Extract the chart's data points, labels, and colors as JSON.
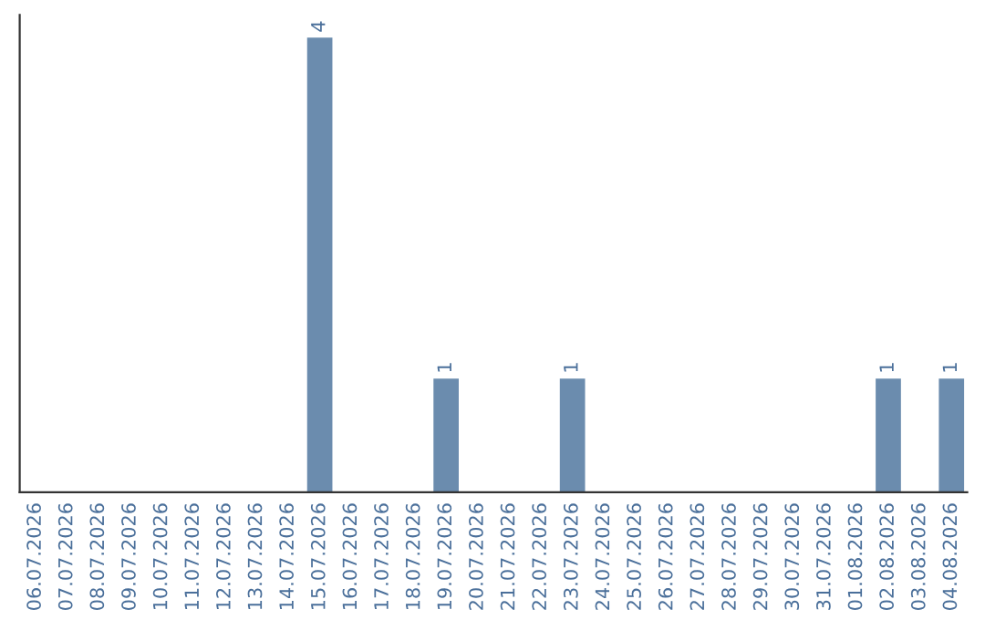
{
  "chart_data": {
    "type": "bar",
    "categories": [
      "06.07.2026",
      "07.07.2026",
      "08.07.2026",
      "09.07.2026",
      "10.07.2026",
      "11.07.2026",
      "12.07.2026",
      "13.07.2026",
      "14.07.2026",
      "15.07.2026",
      "16.07.2026",
      "17.07.2026",
      "18.07.2026",
      "19.07.2026",
      "20.07.2026",
      "21.07.2026",
      "22.07.2026",
      "23.07.2026",
      "24.07.2026",
      "25.07.2026",
      "26.07.2026",
      "27.07.2026",
      "28.07.2026",
      "29.07.2026",
      "30.07.2026",
      "31.07.2026",
      "01.08.2026",
      "02.08.2026",
      "03.08.2026",
      "04.08.2026"
    ],
    "values": [
      null,
      null,
      null,
      null,
      null,
      null,
      null,
      null,
      null,
      4,
      null,
      null,
      null,
      1,
      null,
      null,
      null,
      1,
      null,
      null,
      null,
      null,
      null,
      null,
      null,
      null,
      null,
      1,
      null,
      1
    ],
    "value_labels": [
      null,
      null,
      null,
      null,
      null,
      null,
      null,
      null,
      null,
      "4",
      null,
      null,
      null,
      "1",
      null,
      null,
      null,
      "1",
      null,
      null,
      null,
      null,
      null,
      null,
      null,
      null,
      null,
      "1",
      null,
      "1"
    ],
    "color": "#6b8cae",
    "ylim": [
      0,
      4.2
    ],
    "tick_labels": "x",
    "grid": false,
    "legend": false
  }
}
